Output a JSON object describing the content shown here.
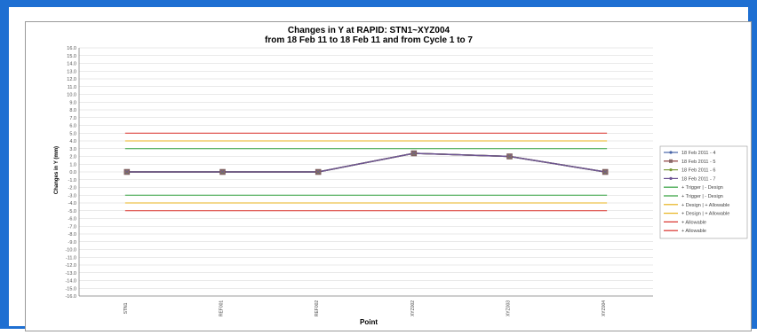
{
  "chart_data": {
    "type": "line",
    "title": "Changes in Y at RAPID: STN1~XYZ004",
    "subtitle": "from 18 Feb 11 to 18 Feb 11 and from Cycle 1 to 7",
    "xlabel": "Point",
    "ylabel": "Changes in Y (mm)",
    "categories": [
      "STN1",
      "REF001",
      "REF002",
      "XYZ002",
      "XYZ003",
      "XYZ004"
    ],
    "ylim": [
      -16,
      16
    ],
    "ytick_step": 1,
    "grid": true,
    "legend_position": "right",
    "series": [
      {
        "name": "18 Feb 2011 - 4",
        "color": "#4a66a8",
        "marker": "circle",
        "values": [
          0,
          0,
          0,
          2.4,
          2.0,
          0
        ]
      },
      {
        "name": "18 Feb 2011 - 5",
        "color": "#8b3a3a",
        "marker": "square",
        "values": [
          0,
          0,
          0,
          2.4,
          2.0,
          0
        ]
      },
      {
        "name": "18 Feb 2011 - 6",
        "color": "#7a9a3a",
        "marker": "triangle",
        "values": [
          0,
          0,
          0,
          2.4,
          2.0,
          0
        ]
      },
      {
        "name": "18 Feb 2011 - 7",
        "color": "#6e5494",
        "marker": "x",
        "values": [
          0,
          0,
          0,
          2.4,
          2.0,
          0
        ]
      }
    ],
    "reference_lines": [
      {
        "name": "+ Trigger | - Design",
        "color": "#2e9e3a",
        "value": 3
      },
      {
        "name": "+ Trigger | - Design",
        "color": "#2e9e3a",
        "value": -3
      },
      {
        "name": "+ Design | + Allowable",
        "color": "#e8b31c",
        "value": 4
      },
      {
        "name": "+ Design | + Allowable",
        "color": "#e8b31c",
        "value": -4
      },
      {
        "name": "+ Allowable",
        "color": "#d9302a",
        "value": 5
      },
      {
        "name": "+ Allowable",
        "color": "#d9302a",
        "value": -5
      }
    ],
    "legend_labels": [
      {
        "name": "18 Feb 2011 - 4",
        "color": "#4a66a8"
      },
      {
        "name": "18 Feb 2011 - 5",
        "color": "#8b3a3a"
      },
      {
        "name": "18 Feb 2011 - 6",
        "color": "#7a9a3a"
      },
      {
        "name": "18 Feb 2011 - 7",
        "color": "#6e5494"
      },
      {
        "name": "+ Trigger | - Design",
        "color": "#2e9e3a"
      },
      {
        "name": "+ Trigger | - Design",
        "color": "#2e9e3a"
      },
      {
        "name": "+ Design | + Allowable",
        "color": "#e8b31c"
      },
      {
        "name": "+ Design | + Allowable",
        "color": "#e8b31c"
      },
      {
        "name": "+ Allowable",
        "color": "#d9302a"
      },
      {
        "name": "+ Allowable",
        "color": "#d9302a"
      }
    ]
  },
  "colors": {
    "frame": "#1e6fd2",
    "grid": "#d6d6d6",
    "axis": "#808080"
  }
}
